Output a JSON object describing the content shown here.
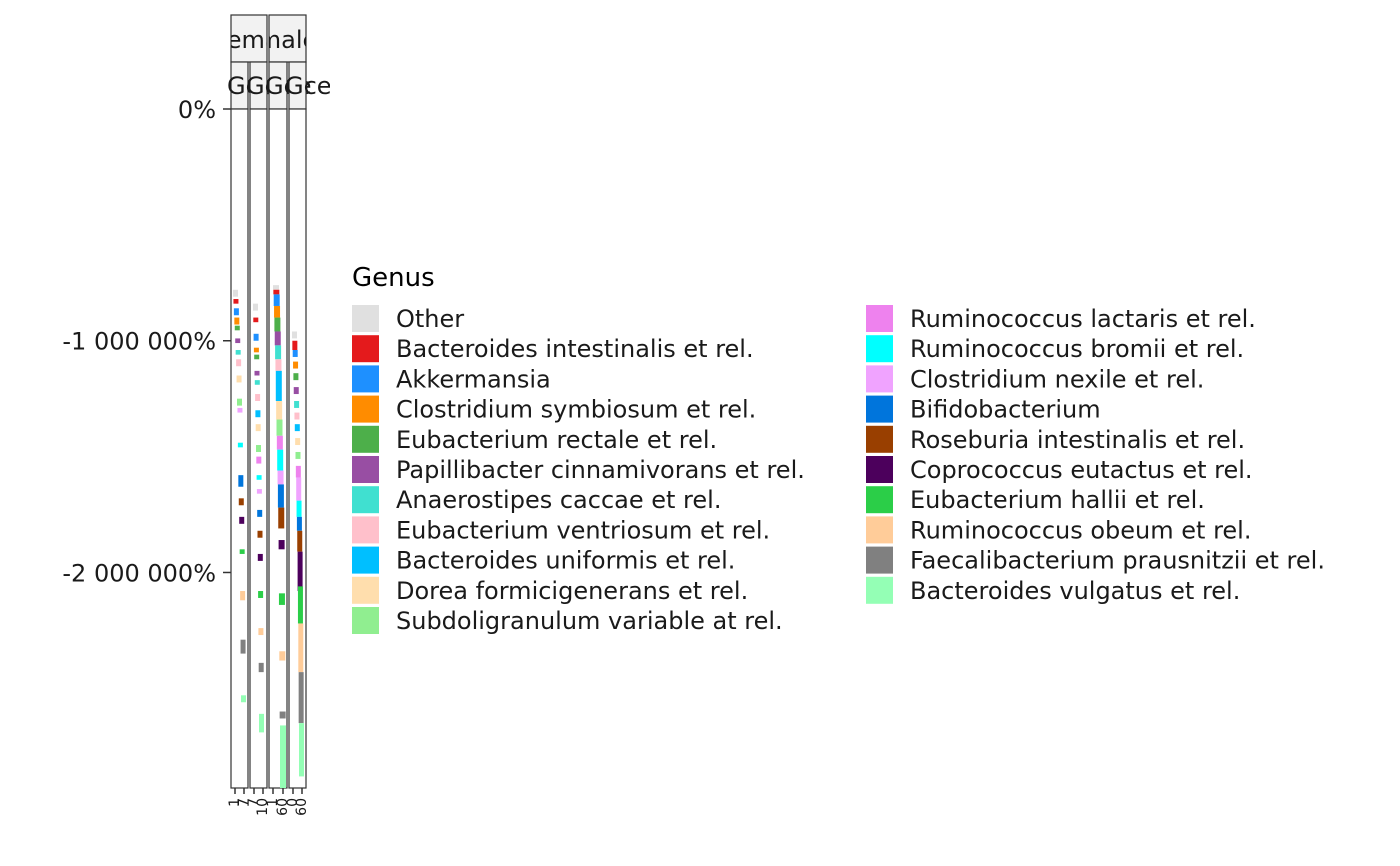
{
  "chart_data": {
    "type": "bar",
    "stacked": true,
    "title": "",
    "xlabel": "",
    "ylabel": "",
    "y_ticks": [
      "0%",
      "-1 000 000%",
      "-2 000 000%"
    ],
    "y_tick_values": [
      0,
      -1000000,
      -2000000
    ],
    "ylim": [
      -2930000,
      0
    ],
    "facets": {
      "rows": [
        "male",
        "female"
      ],
      "row_labels": [
        "male",
        "female"
      ],
      "col_labels": [
        "Gcel",
        "Gcel",
        "Gcel",
        "Gcel"
      ],
      "panels": [
        {
          "sex": "female",
          "subject": "Gce",
          "x_ticks": [
            "1",
            "7"
          ]
        },
        {
          "sex": "female",
          "subject": "Gce",
          "x_ticks": [
            "7",
            "10"
          ]
        },
        {
          "sex": "male",
          "subject": "Gce",
          "x_ticks": [
            "1",
            "60"
          ]
        },
        {
          "sex": "male",
          "subject": "Gce",
          "x_ticks": [
            "0",
            "60"
          ]
        }
      ],
      "strip_top": [
        "fema",
        "male"
      ],
      "strip_mid": [
        "Gce",
        "Gce",
        "Gce",
        "Gce"
      ]
    },
    "legend": {
      "title": "Genus",
      "position": "right",
      "entries": [
        {
          "name": "Other",
          "color": "#e0e0e0"
        },
        {
          "name": "Bacteroides intestinalis et rel.",
          "color": "#e41a1c"
        },
        {
          "name": "Akkermansia",
          "color": "#1e90ff"
        },
        {
          "name": "Clostridium symbiosum et rel.",
          "color": "#ff8c00"
        },
        {
          "name": "Eubacterium rectale et rel.",
          "color": "#4daf4a"
        },
        {
          "name": "Papillibacter cinnamivorans et rel.",
          "color": "#984ea3"
        },
        {
          "name": "Anaerostipes caccae et rel.",
          "color": "#40e0d0"
        },
        {
          "name": "Eubacterium ventriosum et rel.",
          "color": "#ffc0cb"
        },
        {
          "name": "Bacteroides uniformis et rel.",
          "color": "#00bfff"
        },
        {
          "name": "Dorea formicigenerans et rel.",
          "color": "#ffdead"
        },
        {
          "name": "Subdoligranulum variable at rel.",
          "color": "#90ee90"
        },
        {
          "name": "Ruminococcus lactaris et rel.",
          "color": "#ee82ee"
        },
        {
          "name": "Ruminococcus bromii et rel.",
          "color": "#00ffff"
        },
        {
          "name": "Clostridium nexile et rel.",
          "color": "#f0a3ff"
        },
        {
          "name": "Bifidobacterium",
          "color": "#0075dc"
        },
        {
          "name": "Roseburia intestinalis et rel.",
          "color": "#993f00"
        },
        {
          "name": "Coprococcus eutactus et rel.",
          "color": "#4c005c"
        },
        {
          "name": "Eubacterium hallii et rel.",
          "color": "#2bce48"
        },
        {
          "name": "Ruminococcus obeum et rel.",
          "color": "#ffcc99"
        },
        {
          "name": "Faecalibacterium prausnitzii et rel.",
          "color": "#808080"
        },
        {
          "name": "Bacteroides vulgatus et rel.",
          "color": "#94ffb5"
        }
      ]
    },
    "bars": [
      {
        "panel": 0,
        "slot": 0,
        "segments": [
          [
            -780000,
            -810000,
            0
          ],
          [
            -820000,
            -840000,
            1
          ],
          [
            -860000,
            -890000,
            2
          ],
          [
            -900000,
            -930000,
            3
          ],
          [
            -935000,
            -955000,
            4
          ],
          [
            -990000,
            -1010000,
            5
          ],
          [
            -1040000,
            -1060000,
            6
          ],
          [
            -1080000,
            -1110000,
            7
          ],
          [
            -1150000,
            -1180000,
            9
          ],
          [
            -1250000,
            -1280000,
            10
          ],
          [
            -1290000,
            -1310000,
            13
          ],
          [
            -1440000,
            -1460000,
            12
          ],
          [
            -1580000,
            -1630000,
            14
          ],
          [
            -1680000,
            -1710000,
            15
          ],
          [
            -1760000,
            -1790000,
            16
          ],
          [
            -1900000,
            -1920000,
            17
          ],
          [
            -2080000,
            -2120000,
            18
          ],
          [
            -2290000,
            -2350000,
            19
          ],
          [
            -2530000,
            -2560000,
            20
          ]
        ]
      },
      {
        "panel": 1,
        "slot": 0,
        "segments": [
          [
            -840000,
            -870000,
            0
          ],
          [
            -900000,
            -920000,
            1
          ],
          [
            -970000,
            -1000000,
            2
          ],
          [
            -1030000,
            -1050000,
            3
          ],
          [
            -1060000,
            -1080000,
            4
          ],
          [
            -1130000,
            -1150000,
            5
          ],
          [
            -1170000,
            -1190000,
            6
          ],
          [
            -1230000,
            -1260000,
            7
          ],
          [
            -1300000,
            -1330000,
            8
          ],
          [
            -1360000,
            -1390000,
            9
          ],
          [
            -1450000,
            -1480000,
            10
          ],
          [
            -1500000,
            -1530000,
            11
          ],
          [
            -1580000,
            -1600000,
            12
          ],
          [
            -1640000,
            -1660000,
            13
          ],
          [
            -1730000,
            -1760000,
            14
          ],
          [
            -1820000,
            -1850000,
            15
          ],
          [
            -1920000,
            -1950000,
            16
          ],
          [
            -2080000,
            -2110000,
            17
          ],
          [
            -2240000,
            -2270000,
            18
          ],
          [
            -2390000,
            -2430000,
            19
          ],
          [
            -2610000,
            -2690000,
            20
          ]
        ]
      },
      {
        "panel": 2,
        "slot": 0,
        "segments": [
          [
            -760000,
            -780000,
            0
          ],
          [
            -780000,
            -800000,
            1
          ],
          [
            -800000,
            -850000,
            2
          ],
          [
            -850000,
            -900000,
            3
          ],
          [
            -900000,
            -960000,
            4
          ],
          [
            -960000,
            -1020000,
            5
          ],
          [
            -1020000,
            -1080000,
            6
          ],
          [
            -1080000,
            -1130000,
            7
          ],
          [
            -1130000,
            -1260000,
            8
          ],
          [
            -1260000,
            -1340000,
            9
          ],
          [
            -1340000,
            -1410000,
            10
          ],
          [
            -1410000,
            -1470000,
            11
          ],
          [
            -1470000,
            -1560000,
            12
          ],
          [
            -1560000,
            -1620000,
            13
          ],
          [
            -1620000,
            -1720000,
            14
          ],
          [
            -1720000,
            -1810000,
            15
          ],
          [
            -1860000,
            -1900000,
            16
          ],
          [
            -2090000,
            -2140000,
            17
          ],
          [
            -2340000,
            -2380000,
            18
          ],
          [
            -2600000,
            -2630000,
            19
          ],
          [
            -2660000,
            -2930000,
            20
          ]
        ]
      },
      {
        "panel": 3,
        "slot": 0,
        "segments": [
          [
            -960000,
            -990000,
            0
          ],
          [
            -1000000,
            -1040000,
            1
          ],
          [
            -1040000,
            -1070000,
            2
          ],
          [
            -1090000,
            -1120000,
            3
          ],
          [
            -1140000,
            -1170000,
            4
          ],
          [
            -1200000,
            -1230000,
            5
          ],
          [
            -1260000,
            -1290000,
            6
          ],
          [
            -1310000,
            -1340000,
            7
          ],
          [
            -1360000,
            -1390000,
            8
          ],
          [
            -1420000,
            -1450000,
            9
          ],
          [
            -1480000,
            -1510000,
            10
          ],
          [
            -1540000,
            -1590000,
            11
          ],
          [
            -1590000,
            -1690000,
            13
          ],
          [
            -1690000,
            -1760000,
            12
          ],
          [
            -1760000,
            -1820000,
            14
          ],
          [
            -1820000,
            -1910000,
            15
          ],
          [
            -1910000,
            -2080000,
            16
          ],
          [
            -2060000,
            -2220000,
            17
          ],
          [
            -2220000,
            -2430000,
            18
          ],
          [
            -2430000,
            -2650000,
            19
          ],
          [
            -2650000,
            -2880000,
            20
          ]
        ]
      }
    ]
  }
}
